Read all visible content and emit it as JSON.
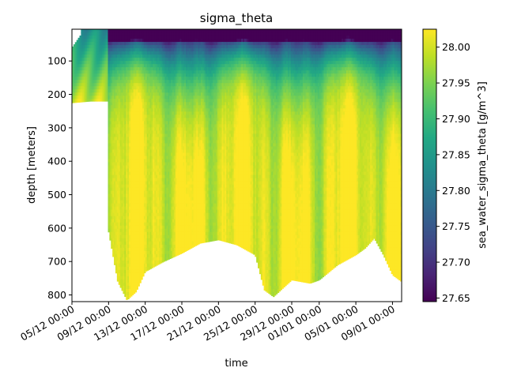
{
  "chart_data": {
    "type": "heatmap",
    "title": "sigma_theta",
    "xlabel": "time",
    "ylabel": "depth [meters]",
    "colorbar_label": "sea_water_sigma_theta [g/m^3]",
    "colormap": "viridis",
    "y_inverted": true,
    "x_start": "2021-12-05",
    "x_end": "2022-01-10",
    "xlim": [
      "2021-12-05",
      "2022-01-10"
    ],
    "ylim": [
      820,
      5
    ],
    "clim": [
      27.645,
      28.025
    ],
    "x_ticks": [
      "2021-12-05",
      "2021-12-09",
      "2021-12-13",
      "2021-12-17",
      "2021-12-21",
      "2021-12-25",
      "2021-12-29",
      "2022-01-01",
      "2022-01-05",
      "2022-01-09"
    ],
    "x_tick_labels": [
      "05/12 00:00",
      "09/12 00:00",
      "13/12 00:00",
      "17/12 00:00",
      "21/12 00:00",
      "25/12 00:00",
      "29/12 00:00",
      "01/01 00:00",
      "05/01 00:00",
      "09/01 00:00"
    ],
    "y_ticks": [
      100,
      200,
      300,
      400,
      500,
      600,
      700,
      800
    ],
    "y_tick_labels": [
      "100",
      "200",
      "300",
      "400",
      "500",
      "600",
      "700",
      "800"
    ],
    "colorbar_ticks": [
      27.65,
      27.7,
      27.75,
      27.8,
      27.85,
      27.9,
      27.95,
      28.0
    ],
    "colorbar_tick_labels": [
      "27.65",
      "27.70",
      "27.75",
      "27.80",
      "27.85",
      "27.90",
      "27.95",
      "28.00"
    ],
    "max_depth_profile": {
      "time": [
        "2021-12-05",
        "2021-12-07",
        "2021-12-09",
        "2021-12-09",
        "2021-12-10",
        "2021-12-11",
        "2021-12-12",
        "2021-12-13",
        "2021-12-15",
        "2021-12-17",
        "2021-12-19",
        "2021-12-21",
        "2021-12-23",
        "2021-12-24",
        "2021-12-25",
        "2021-12-26",
        "2021-12-27",
        "2021-12-29",
        "2021-12-31",
        "2022-01-01",
        "2022-01-03",
        "2022-01-05",
        "2022-01-06",
        "2022-01-07",
        "2022-01-08",
        "2022-01-09",
        "2022-01-10"
      ],
      "depth": [
        225,
        220,
        220,
        610,
        760,
        815,
        790,
        730,
        700,
        675,
        645,
        635,
        650,
        665,
        680,
        785,
        805,
        755,
        765,
        755,
        710,
        680,
        660,
        630,
        680,
        740,
        760
      ]
    }
  }
}
